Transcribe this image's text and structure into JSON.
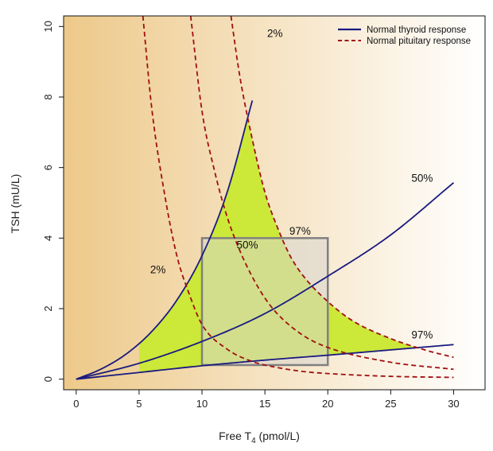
{
  "chart_data": {
    "type": "line",
    "xlabel": "Free T",
    "xlabel_sub": "4",
    "xlabel_unit": " (pmol/L)",
    "ylabel": "TSH (mU/L)",
    "xlim": [
      -1,
      32.5
    ],
    "ylim": [
      -0.3,
      10.3
    ],
    "xticks": [
      0,
      5,
      10,
      15,
      20,
      25,
      30
    ],
    "yticks": [
      0,
      2,
      4,
      6,
      8,
      10
    ],
    "legend_position": "top-right",
    "colors": {
      "thyroid": "#1a1a80",
      "pituitary": "#a01010",
      "feasible_region": "#cce838",
      "reference_box_fill": "#d7d5cf",
      "reference_box_edge": "#808080",
      "background_left": "#edc98a",
      "background_right": "#ffffff"
    },
    "series": [
      {
        "name": "Normal thyroid response",
        "style": "solid",
        "curves": [
          {
            "label": "2%",
            "x": [
              0,
              2,
              4,
              6,
              8,
              10,
              12,
              14
            ],
            "y": [
              0,
              0.29,
              0.72,
              1.35,
              2.24,
              3.5,
              5.3,
              7.9
            ]
          },
          {
            "label": "50%",
            "x": [
              0,
              5,
              10,
              15,
              20,
              25,
              30
            ],
            "y": [
              0,
              0.45,
              1.07,
              1.86,
              2.92,
              4.09,
              5.57
            ]
          },
          {
            "label": "97%",
            "x": [
              0,
              5,
              10,
              15,
              20,
              25,
              30
            ],
            "y": [
              0,
              0.19,
              0.38,
              0.54,
              0.68,
              0.83,
              0.98
            ]
          }
        ]
      },
      {
        "name": "Normal pituitary response",
        "style": "dashed",
        "curves": [
          {
            "label": "2%",
            "x": [
              5.3,
              6,
              7,
              8,
              9,
              10,
              12,
              14,
              16,
              18,
              20,
              25,
              30
            ],
            "y": [
              10.3,
              7.7,
              5.3,
              3.5,
              2.4,
              1.55,
              0.85,
              0.5,
              0.33,
              0.22,
              0.16,
              0.08,
              0.05
            ]
          },
          {
            "label": "50%",
            "x": [
              9.1,
              10,
              11,
              12,
              13,
              14,
              15,
              16,
              18,
              20,
              25,
              30
            ],
            "y": [
              10.3,
              7.6,
              5.9,
              4.6,
              3.65,
              2.9,
              2.3,
              1.85,
              1.25,
              0.9,
              0.48,
              0.28
            ]
          },
          {
            "label": "97%",
            "x": [
              12.3,
              13,
              14,
              15,
              16,
              17,
              18,
              20,
              22,
              25,
              28,
              30
            ],
            "y": [
              10.3,
              8.6,
              6.8,
              5.3,
              4.3,
              3.5,
              2.95,
              2.2,
              1.65,
              1.15,
              0.8,
              0.62
            ]
          }
        ]
      }
    ],
    "reference_box": {
      "x": [
        10,
        20
      ],
      "y": [
        0.4,
        4.0
      ]
    },
    "annotations": [
      {
        "text": "2%",
        "x": 15.8,
        "y": 9.7
      },
      {
        "text": "50%",
        "x": 27.5,
        "y": 5.6
      },
      {
        "text": "97%",
        "x": 27.5,
        "y": 1.15
      },
      {
        "text": "97%",
        "x": 17.8,
        "y": 4.1
      },
      {
        "text": "50%",
        "x": 13.6,
        "y": 3.7
      },
      {
        "text": "2%",
        "x": 6.5,
        "y": 3.0
      }
    ]
  }
}
